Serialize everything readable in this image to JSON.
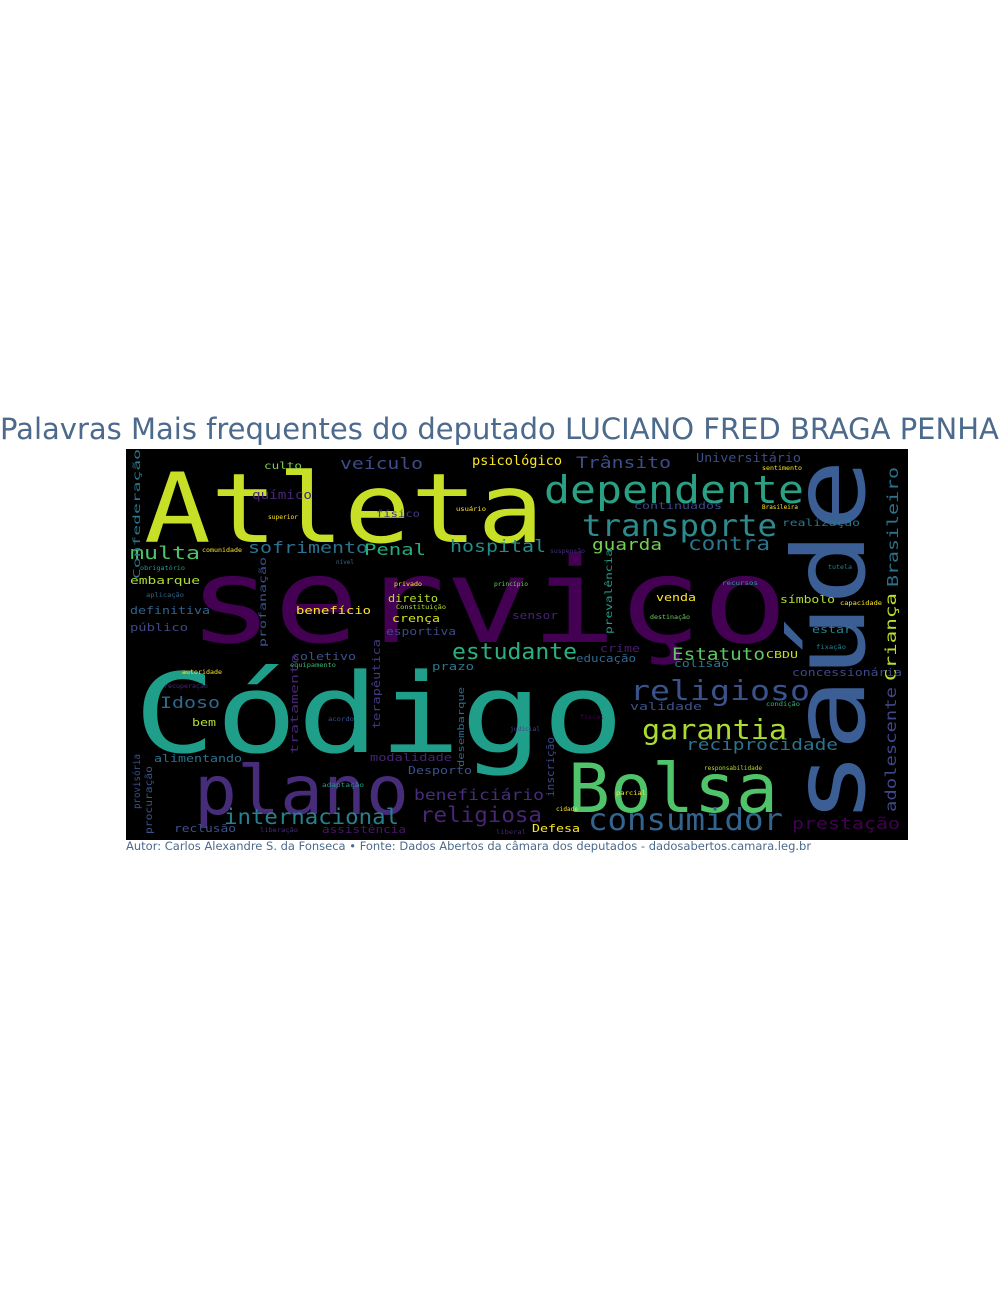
{
  "title": "Palavras Mais frequentes do deputado LUCIANO FRED BRAGA PENHA",
  "caption": "Autor: Carlos Alexandre S. da Fonseca • Fonte: Dados Abertos da câmara dos deputados - dadosabertos.camara.leg.br",
  "colors": {
    "background": "#000000",
    "title": "#4c6a8c",
    "palette": [
      "#440154",
      "#482878",
      "#3e4a89",
      "#31688e",
      "#26828e",
      "#1f9e89",
      "#35b779",
      "#6ece58",
      "#b5de2b",
      "#fde725"
    ]
  },
  "words": [
    {
      "text": "serviço",
      "color": "#440154"
    },
    {
      "text": "Código",
      "color": "#1f9e89"
    },
    {
      "text": "Atleta",
      "color": "#c8df28"
    },
    {
      "text": "saúde",
      "color": "#3b5e95"
    },
    {
      "text": "Bolsa",
      "color": "#4fc46a"
    },
    {
      "text": "plano",
      "color": "#472c7a"
    },
    {
      "text": "dependente",
      "color": "#2aa085"
    },
    {
      "text": "consumidor",
      "color": "#32648e"
    },
    {
      "text": "transporte",
      "color": "#2e8a8c"
    },
    {
      "text": "religioso",
      "color": "#3a538b"
    },
    {
      "text": "garantia",
      "color": "#addc30"
    },
    {
      "text": "estudante",
      "color": "#2ab07f"
    },
    {
      "text": "internacional",
      "color": "#26818e"
    },
    {
      "text": "religiosa",
      "color": "#482576"
    },
    {
      "text": "multa",
      "color": "#4ec36b"
    },
    {
      "text": "contra",
      "color": "#2a768e"
    },
    {
      "text": "hospital",
      "color": "#228d8d"
    },
    {
      "text": "sofrimento",
      "color": "#2c728e"
    },
    {
      "text": "Penal",
      "color": "#27ad81"
    },
    {
      "text": "veículo",
      "color": "#3e4c8a"
    },
    {
      "text": "Estatuto",
      "color": "#5ec962"
    },
    {
      "text": "reciprocidade",
      "color": "#2c738e"
    },
    {
      "text": "guarda",
      "color": "#75d054"
    },
    {
      "text": "Trânsito",
      "color": "#3d4e8a"
    },
    {
      "text": "prestação",
      "color": "#440154"
    },
    {
      "text": "Brasileiro",
      "color": "#2c728e"
    },
    {
      "text": "Criança",
      "color": "#b8de29"
    },
    {
      "text": "adolescente",
      "color": "#3f4788"
    },
    {
      "text": "Idoso",
      "color": "#31688e"
    },
    {
      "text": "beneficiário",
      "color": "#472d7b"
    },
    {
      "text": "psicológico",
      "color": "#fde725"
    },
    {
      "text": "Universitário",
      "color": "#3d4d8a"
    },
    {
      "text": "químico",
      "color": "#482878"
    },
    {
      "text": "culto",
      "color": "#7ad151"
    },
    {
      "text": "físico",
      "color": "#443983"
    },
    {
      "text": "Confederação",
      "color": "#2a788e"
    },
    {
      "text": "embarque",
      "color": "#addc30"
    },
    {
      "text": "definitiva",
      "color": "#33638d"
    },
    {
      "text": "público",
      "color": "#3e4989"
    },
    {
      "text": "benefício",
      "color": "#fde725"
    },
    {
      "text": "profanação",
      "color": "#3b528b"
    },
    {
      "text": "direito",
      "color": "#b5de2b"
    },
    {
      "text": "crença",
      "color": "#d8e219"
    },
    {
      "text": "esportiva",
      "color": "#3e4a89"
    },
    {
      "text": "prevalência",
      "color": "#1f9e89"
    },
    {
      "text": "venda",
      "color": "#fde725"
    },
    {
      "text": "símbolo",
      "color": "#b5de2b"
    },
    {
      "text": "estar",
      "color": "#26828e"
    },
    {
      "text": "coletivo",
      "color": "#3b528b"
    },
    {
      "text": "prazo",
      "color": "#2a788e"
    },
    {
      "text": "educação",
      "color": "#31688e"
    },
    {
      "text": "crime",
      "color": "#481f70"
    },
    {
      "text": "colisão",
      "color": "#2a788e"
    },
    {
      "text": "CBDU",
      "color": "#c2df23"
    },
    {
      "text": "concessionária",
      "color": "#3e4989"
    },
    {
      "text": "terapêutica",
      "color": "#443983"
    },
    {
      "text": "tratamento",
      "color": "#482475"
    },
    {
      "text": "modalidade",
      "color": "#482475"
    },
    {
      "text": "Desporto",
      "color": "#3b528b"
    },
    {
      "text": "desembarque",
      "color": "#31688e"
    },
    {
      "text": "inscrição",
      "color": "#3e4989"
    },
    {
      "text": "validade",
      "color": "#3b528b"
    },
    {
      "text": "alimentando",
      "color": "#2c728e"
    },
    {
      "text": "provisória",
      "color": "#3b528b"
    },
    {
      "text": "procuração",
      "color": "#3b528b"
    },
    {
      "text": "reclusão",
      "color": "#3b528b"
    },
    {
      "text": "assistência",
      "color": "#481769"
    },
    {
      "text": "Defesa",
      "color": "#fde725"
    },
    {
      "text": "continuados",
      "color": "#3e4989"
    },
    {
      "text": "realização",
      "color": "#2a788e"
    },
    {
      "text": "sensor",
      "color": "#482475"
    },
    {
      "text": "bem",
      "color": "#b5de2b"
    },
    {
      "text": "superior",
      "color": "#fde725"
    },
    {
      "text": "usuário",
      "color": "#fde725"
    },
    {
      "text": "suspensão",
      "color": "#472d7b"
    },
    {
      "text": "comunidade",
      "color": "#fde725"
    },
    {
      "text": "obrigatório",
      "color": "#1f9e89"
    },
    {
      "text": "privado",
      "color": "#fde725"
    },
    {
      "text": "princípio",
      "color": "#6ece58"
    },
    {
      "text": "aplicação",
      "color": "#31688e"
    },
    {
      "text": "Constituição",
      "color": "#b5de2b"
    },
    {
      "text": "recursos",
      "color": "#1f9e89"
    },
    {
      "text": "tutela",
      "color": "#26828e"
    },
    {
      "text": "capacidade",
      "color": "#fde725"
    },
    {
      "text": "destinação",
      "color": "#6ece58"
    },
    {
      "text": "fixação",
      "color": "#26828e"
    },
    {
      "text": "equipamento",
      "color": "#35b779"
    },
    {
      "text": "autoridade",
      "color": "#fde725"
    },
    {
      "text": "recuperação",
      "color": "#482878"
    },
    {
      "text": "acordo",
      "color": "#3b528b"
    },
    {
      "text": "judicial",
      "color": "#3e4989"
    },
    {
      "text": "fiscal",
      "color": "#440154"
    },
    {
      "text": "condição",
      "color": "#35b779"
    },
    {
      "text": "adaptação",
      "color": "#1f9e89"
    },
    {
      "text": "responsabilidade",
      "color": "#b5de2b"
    },
    {
      "text": "cidade",
      "color": "#fde725"
    },
    {
      "text": "Brasileira",
      "color": "#fde725"
    },
    {
      "text": "sentimento",
      "color": "#fde725"
    },
    {
      "text": "liberação",
      "color": "#472d7b"
    },
    {
      "text": "liberal",
      "color": "#482475"
    },
    {
      "text": "parcial",
      "color": "#fde725"
    },
    {
      "text": "nível",
      "color": "#31688e"
    }
  ]
}
